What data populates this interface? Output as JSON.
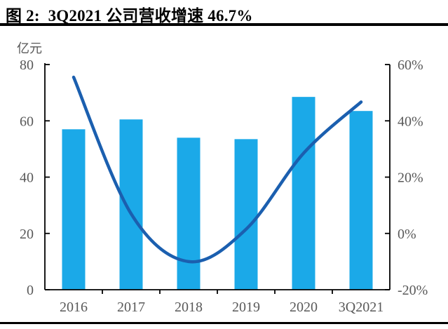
{
  "header": {
    "title": "图 2:  3Q2021 公司营收增速 46.7%"
  },
  "chart": {
    "unit_label": "亿元",
    "colors": {
      "bar": "#1BA9E8",
      "line": "#1B5FAF",
      "axis": "#000000",
      "tick_label": "#595959"
    }
  },
  "chart_data": {
    "type": "bar+line combo",
    "title": "图 2: 3Q2021 公司营收增速 46.7%",
    "categories": [
      "2016",
      "2017",
      "2018",
      "2019",
      "2020",
      "3Q2021"
    ],
    "series": [
      {
        "name": "营收 (亿元)",
        "type": "bar",
        "axis": "left",
        "values": [
          57,
          60.5,
          54,
          53.5,
          68.5,
          63.5
        ]
      },
      {
        "name": "营收增速",
        "type": "line",
        "axis": "right",
        "values": [
          55.5,
          7,
          -10,
          1.5,
          28.5,
          46.7
        ]
      }
    ],
    "left_axis": {
      "unit": "亿元",
      "range": [
        0,
        80
      ],
      "tick_labels": [
        "0",
        "20",
        "40",
        "60",
        "80"
      ]
    },
    "right_axis": {
      "range": [
        -20,
        60
      ],
      "tick_labels": [
        "-20%",
        "0%",
        "20%",
        "40%",
        "60%"
      ]
    },
    "grid": "off",
    "legend": "none",
    "line_smooth": true
  }
}
